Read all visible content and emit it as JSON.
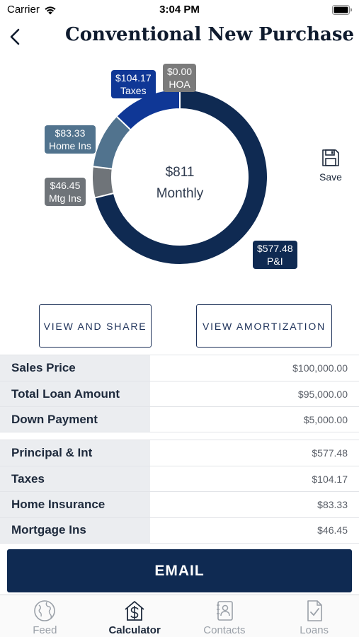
{
  "status_bar": {
    "carrier": "Carrier",
    "time": "3:04 PM"
  },
  "header": {
    "title": "Conventional New Purchase"
  },
  "summary": {
    "center_value": "$811",
    "center_label": "Monthly",
    "save_label": "Save"
  },
  "chart_data": {
    "type": "pie",
    "categories": [
      "P&I",
      "Mtg Ins",
      "Home Ins",
      "Taxes",
      "HOA"
    ],
    "values": [
      577.48,
      46.45,
      83.33,
      104.17,
      0.0
    ],
    "value_labels": [
      "$577.48",
      "$46.45",
      "$83.33",
      "$104.17",
      "$0.00"
    ],
    "colors": [
      "#0f2a52",
      "#6f7479",
      "#51738e",
      "#0f3796",
      "#7b7b7b"
    ],
    "center_text": [
      "$811",
      "Monthly"
    ]
  },
  "actions": {
    "view_share": "VIEW AND SHARE",
    "view_amortization": "VIEW AMORTIZATION"
  },
  "loan_table": [
    {
      "label": "Sales Price",
      "value": "$100,000.00"
    },
    {
      "label": "Total Loan Amount",
      "value": "$95,000.00"
    },
    {
      "label": "Down Payment",
      "value": "$5,000.00"
    }
  ],
  "payment_table": [
    {
      "label": "Principal & Int",
      "value": "$577.48"
    },
    {
      "label": "Taxes",
      "value": "$104.17"
    },
    {
      "label": "Home Insurance",
      "value": "$83.33"
    },
    {
      "label": "Mortgage Ins",
      "value": "$46.45"
    }
  ],
  "email_label": "EMAIL",
  "tabs": [
    {
      "label": "Feed",
      "icon": "globe-icon",
      "active": false
    },
    {
      "label": "Calculator",
      "icon": "house-dollar-icon",
      "active": true
    },
    {
      "label": "Contacts",
      "icon": "contacts-icon",
      "active": false
    },
    {
      "label": "Loans",
      "icon": "document-check-icon",
      "active": false
    }
  ]
}
